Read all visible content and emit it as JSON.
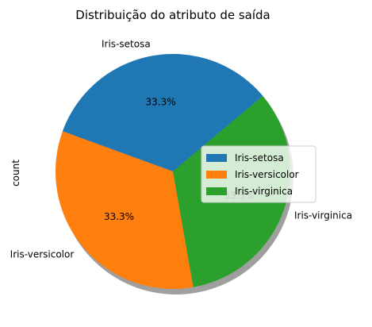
{
  "chart_data": {
    "type": "pie",
    "title": "Distribuição do atributo de saída",
    "ylabel": "count",
    "categories": [
      "Iris-setosa",
      "Iris-versicolor",
      "Iris-virginica"
    ],
    "values": [
      50,
      50,
      50
    ],
    "percent_labels": [
      "33.3%",
      "33.3%",
      "33.3%"
    ],
    "colors": [
      "#1f77b4",
      "#ff7f0e",
      "#2ca02c"
    ],
    "shadow": true,
    "legend_placement": "center-right",
    "legend": [
      "Iris-setosa",
      "Iris-versicolor",
      "Iris-virginica"
    ]
  }
}
